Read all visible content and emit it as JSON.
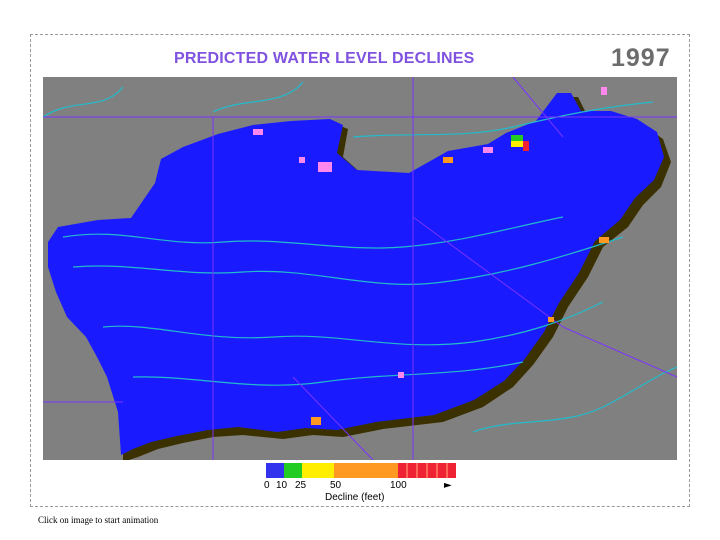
{
  "title": "PREDICTED WATER LEVEL DECLINES",
  "year": "1997",
  "legend": {
    "ticks": [
      "0",
      "10",
      "25",
      "50",
      "100"
    ],
    "title": "Decline (feet)",
    "colors": [
      "#3333ee",
      "#22cc22",
      "#ffee00",
      "#ff9922",
      "#ee2233"
    ],
    "arrow": "►"
  },
  "caption": "Click on image to start animation",
  "map_colors": {
    "background": "#808080",
    "aquifer": "#1a1aff",
    "shadow": "#3b3100",
    "rivers": "#22bbcc",
    "boundaries": "#7a33ff",
    "hotspots": "#ff88ee"
  }
}
